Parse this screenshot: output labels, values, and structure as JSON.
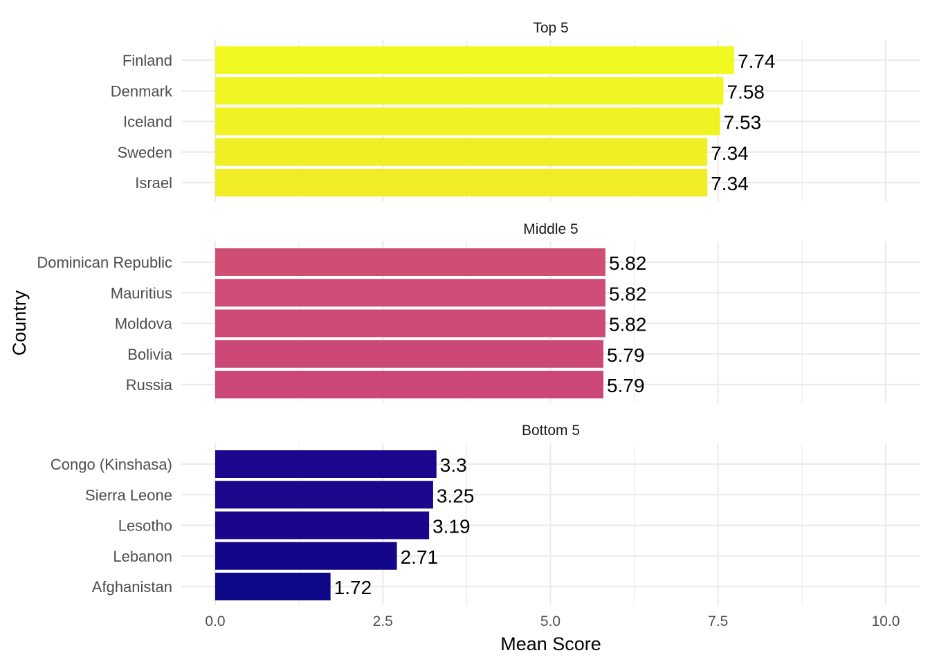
{
  "chart_data": {
    "type": "bar",
    "orientation": "horizontal",
    "xlabel": "Mean Score",
    "ylabel": "Country",
    "xlim": [
      0,
      10
    ],
    "x_ticks": [
      "0.0",
      "2.5",
      "5.0",
      "7.5",
      "10.0"
    ],
    "x_tick_values": [
      0,
      2.5,
      5,
      7.5,
      10
    ],
    "grid": true,
    "legend": "none",
    "facets": [
      {
        "title": "Top 5",
        "categories": [
          "Finland",
          "Denmark",
          "Iceland",
          "Sweden",
          "Israel"
        ],
        "values": [
          7.74,
          7.58,
          7.53,
          7.34,
          7.34
        ],
        "labels": [
          "7.74",
          "7.58",
          "7.53",
          "7.34",
          "7.34"
        ],
        "colors": [
          "#F0F921",
          "#F0F623",
          "#F0F323",
          "#F0EE24",
          "#F0EC25"
        ]
      },
      {
        "title": "Middle 5",
        "categories": [
          "Dominican Republic",
          "Mauritius",
          "Moldova",
          "Bolivia",
          "Russia"
        ],
        "values": [
          5.82,
          5.82,
          5.82,
          5.79,
          5.79
        ],
        "labels": [
          "5.82",
          "5.82",
          "5.82",
          "5.79",
          "5.79"
        ],
        "colors": [
          "#CF4E74",
          "#CE4C75",
          "#CD4B76",
          "#CC4877",
          "#CB4778"
        ]
      },
      {
        "title": "Bottom 5",
        "categories": [
          "Congo (Kinshasa)",
          "Sierra Leone",
          "Lesotho",
          "Lebanon",
          "Afghanistan"
        ],
        "values": [
          3.3,
          3.25,
          3.19,
          2.71,
          1.72
        ],
        "labels": [
          "3.3",
          "3.25",
          "3.19",
          "2.71",
          "1.72"
        ],
        "colors": [
          "#1C068D",
          "#1B068C",
          "#19068C",
          "#13068A",
          "#0D0887"
        ]
      }
    ]
  }
}
